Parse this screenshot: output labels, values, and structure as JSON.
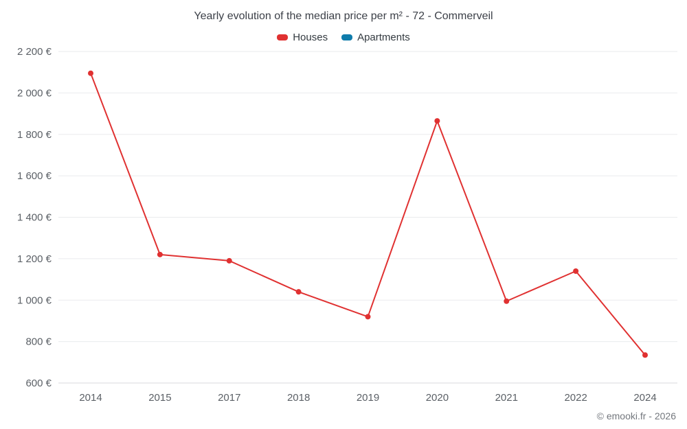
{
  "footer": {
    "copyright": "© emooki.fr - 2026"
  },
  "chart_data": {
    "type": "line",
    "title": "Yearly evolution of the median price per m² - 72 - Commerveil",
    "categories": [
      "2014",
      "2015",
      "2017",
      "2018",
      "2019",
      "2020",
      "2021",
      "2022",
      "2024"
    ],
    "series": [
      {
        "name": "Houses",
        "color": "#e03131",
        "values": [
          2095,
          1220,
          1190,
          1040,
          920,
          1865,
          995,
          1140,
          735
        ]
      },
      {
        "name": "Apartments",
        "color": "#0f7cab",
        "values": []
      }
    ],
    "xlabel": "",
    "ylabel": "",
    "ylim": [
      600,
      2200
    ],
    "ytick_step": 200,
    "ytick_labels": [
      "600 €",
      "800 €",
      "1 000 €",
      "1 200 €",
      "1 400 €",
      "1 600 €",
      "1 800 €",
      "2 000 €",
      "2 200 €"
    ],
    "grid": true,
    "legend_position": "top",
    "currency_suffix": " €"
  }
}
